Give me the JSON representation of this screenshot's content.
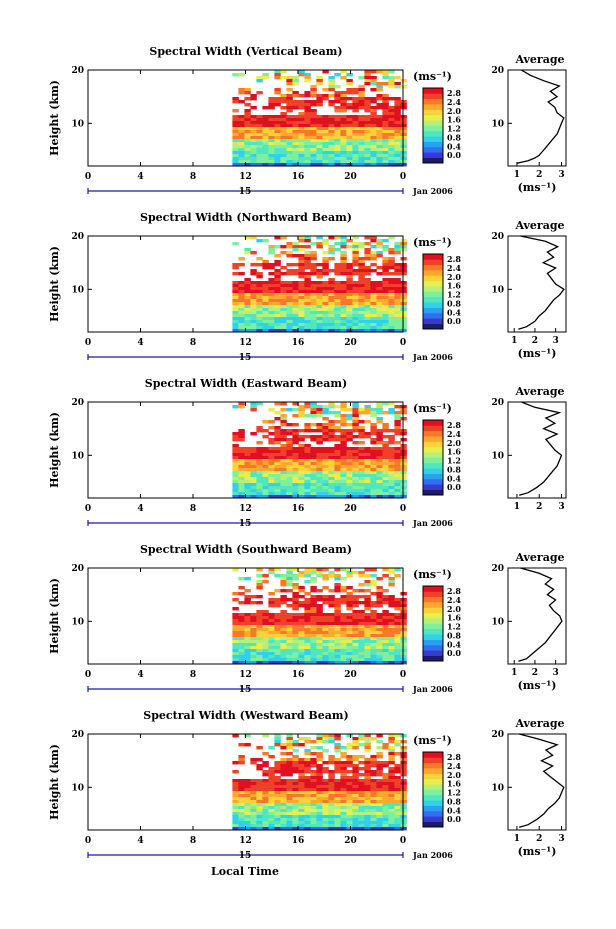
{
  "chart_data": [
    {
      "type": "heatmap",
      "title": "Spectral Width (Vertical Beam)",
      "ylabel": "Height (km)",
      "xticks": [
        "0",
        "4",
        "8",
        "12",
        "16",
        "20",
        "0"
      ],
      "date_label": "15",
      "date_suffix": "Jan 2006",
      "xlim": [
        0,
        24
      ],
      "ylim": [
        2,
        20
      ],
      "yticks": [
        "10",
        "20"
      ],
      "data_start_hour": 11,
      "colorbar": {
        "unit": "(ms⁻¹)",
        "ticks": [
          "2.8",
          "2.4",
          "2.0",
          "1.6",
          "1.2",
          "0.8",
          "0.4",
          "0.0"
        ]
      },
      "average_profile": {
        "title": "Average",
        "xlabel": "(ms⁻¹)",
        "xticks": [
          "1",
          "2",
          "3"
        ],
        "yticks": [
          "10",
          "20"
        ],
        "xlim": [
          0.6,
          3.2
        ],
        "height": [
          2.5,
          3,
          3.5,
          4,
          5,
          6,
          7,
          8,
          9,
          10,
          11,
          12,
          13,
          14,
          15,
          16,
          17,
          18,
          19,
          20
        ],
        "value": [
          1.0,
          1.5,
          1.8,
          2.0,
          2.2,
          2.4,
          2.6,
          2.8,
          2.9,
          3.0,
          3.1,
          2.8,
          2.7,
          2.4,
          2.8,
          2.5,
          2.9,
          2.2,
          1.6,
          1.2
        ]
      }
    },
    {
      "type": "heatmap",
      "title": "Spectral Width (Northward Beam)",
      "ylabel": "Height (km)",
      "xticks": [
        "0",
        "4",
        "8",
        "12",
        "16",
        "20",
        "0"
      ],
      "date_label": "15",
      "date_suffix": "Jan 2006",
      "xlim": [
        0,
        24
      ],
      "ylim": [
        2,
        20
      ],
      "yticks": [
        "10",
        "20"
      ],
      "data_start_hour": 11,
      "colorbar": {
        "unit": "(ms⁻¹)",
        "ticks": [
          "2.8",
          "2.4",
          "2.0",
          "1.6",
          "1.2",
          "0.8",
          "0.4",
          "0.0"
        ]
      },
      "average_profile": {
        "title": "Average",
        "xlabel": "(ms⁻¹)",
        "xticks": [
          "1",
          "2",
          "3"
        ],
        "yticks": [
          "10",
          "20"
        ],
        "xlim": [
          0.7,
          3.5
        ],
        "height": [
          2.5,
          3,
          4,
          5,
          6,
          7,
          8,
          9,
          10,
          11,
          12,
          13,
          14,
          15,
          16,
          17,
          18,
          19,
          20
        ],
        "value": [
          1.2,
          1.6,
          2.0,
          2.2,
          2.5,
          2.7,
          2.9,
          3.2,
          3.4,
          3.0,
          2.8,
          2.6,
          3.0,
          2.4,
          2.9,
          2.6,
          3.1,
          2.5,
          1.3
        ]
      }
    },
    {
      "type": "heatmap",
      "title": "Spectral Width (Eastward Beam)",
      "ylabel": "Height (km)",
      "xticks": [
        "0",
        "4",
        "8",
        "12",
        "16",
        "20",
        "0"
      ],
      "date_label": "15",
      "date_suffix": "Jan 2006",
      "xlim": [
        0,
        24
      ],
      "ylim": [
        2,
        20
      ],
      "yticks": [
        "10",
        "20"
      ],
      "data_start_hour": 11,
      "colorbar": {
        "unit": "(ms⁻¹)",
        "ticks": [
          "2.8",
          "2.4",
          "2.0",
          "1.6",
          "1.2",
          "0.8",
          "0.4",
          "0.0"
        ]
      },
      "average_profile": {
        "title": "Average",
        "xlabel": "",
        "xticks": [
          "1",
          "2",
          "3"
        ],
        "yticks": [
          "10",
          "20"
        ],
        "xlim": [
          0.6,
          3.2
        ],
        "height": [
          2.5,
          3,
          4,
          5,
          6,
          7,
          8,
          9,
          10,
          11,
          12,
          13,
          14,
          15,
          16,
          17,
          18,
          19,
          20
        ],
        "value": [
          1.1,
          1.5,
          1.9,
          2.2,
          2.4,
          2.6,
          2.8,
          2.9,
          3.0,
          2.7,
          2.5,
          2.3,
          2.8,
          2.2,
          2.7,
          2.3,
          2.9,
          1.8,
          1.2
        ]
      }
    },
    {
      "type": "heatmap",
      "title": "Spectral Width (Southward Beam)",
      "ylabel": "Height (km)",
      "xticks": [
        "0",
        "4",
        "8",
        "12",
        "16",
        "20",
        "0"
      ],
      "date_label": "15",
      "date_suffix": "Jan 2006",
      "xlim": [
        0,
        24
      ],
      "ylim": [
        2,
        20
      ],
      "yticks": [
        "10",
        "20"
      ],
      "data_start_hour": 11,
      "colorbar": {
        "unit": "(ms⁻¹)",
        "ticks": [
          "2.8",
          "2.4",
          "2.0",
          "1.6",
          "1.2",
          "0.8",
          "0.4",
          "0.0"
        ]
      },
      "average_profile": {
        "title": "Average",
        "xlabel": "(ms⁻¹)",
        "xticks": [
          "1",
          "2",
          "3"
        ],
        "yticks": [
          "10",
          "20"
        ],
        "xlim": [
          0.7,
          3.5
        ],
        "height": [
          2.5,
          3,
          4,
          5,
          6,
          7,
          8,
          9,
          10,
          11,
          12,
          13,
          14,
          15,
          16,
          17,
          18,
          19,
          20
        ],
        "value": [
          1.2,
          1.6,
          1.9,
          2.2,
          2.5,
          2.7,
          2.9,
          3.1,
          3.3,
          3.2,
          2.9,
          2.7,
          3.0,
          2.6,
          2.9,
          2.5,
          2.8,
          2.2,
          1.3
        ]
      }
    },
    {
      "type": "heatmap",
      "title": "Spectral Width (Westward Beam)",
      "ylabel": "Height (km)",
      "xticks": [
        "0",
        "4",
        "8",
        "12",
        "16",
        "20",
        "0"
      ],
      "date_label": "15",
      "date_suffix": "Jan 2006",
      "xlabel": "Local Time",
      "xlim": [
        0,
        24
      ],
      "ylim": [
        2,
        20
      ],
      "yticks": [
        "10",
        "20"
      ],
      "data_start_hour": 11,
      "colorbar": {
        "unit": "(ms⁻¹)",
        "ticks": [
          "2.8",
          "2.4",
          "2.0",
          "1.6",
          "1.2",
          "0.8",
          "0.4",
          "0.0"
        ]
      },
      "average_profile": {
        "title": "Average",
        "xlabel": "(ms⁻¹)",
        "xticks": [
          "1",
          "2",
          "3"
        ],
        "yticks": [
          "10",
          "20"
        ],
        "xlim": [
          0.6,
          3.2
        ],
        "height": [
          2.5,
          3,
          4,
          5,
          6,
          7,
          8,
          9,
          10,
          11,
          12,
          13,
          14,
          15,
          16,
          17,
          18,
          19,
          20
        ],
        "value": [
          1.1,
          1.5,
          1.9,
          2.2,
          2.4,
          2.7,
          2.9,
          3.0,
          3.1,
          2.8,
          2.5,
          2.2,
          2.6,
          2.1,
          2.6,
          2.3,
          2.8,
          2.0,
          1.1
        ]
      }
    }
  ]
}
